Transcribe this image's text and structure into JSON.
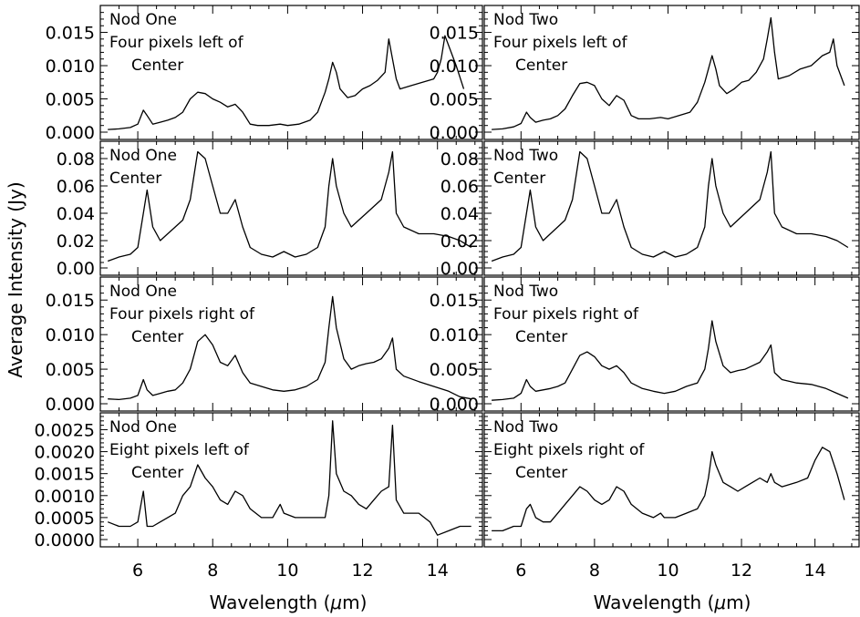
{
  "chart_data": [
    {
      "type": "line",
      "annotation": [
        "Nod One",
        "Four pixels left of",
        "Center"
      ],
      "ylim": [
        0,
        0.0185
      ],
      "yticks": [
        "0.000",
        "0.005",
        "0.010",
        "0.015"
      ],
      "xlim": [
        5,
        15.2
      ],
      "xticks": [
        "6",
        "8",
        "10",
        "12",
        "14"
      ],
      "series": [
        {
          "x": [
            5.2,
            5.5,
            5.8,
            6.0,
            6.15,
            6.25,
            6.4,
            6.6,
            6.8,
            7.0,
            7.2,
            7.4,
            7.6,
            7.8,
            8.0,
            8.2,
            8.4,
            8.6,
            8.8,
            9.0,
            9.2,
            9.5,
            9.8,
            10.0,
            10.3,
            10.6,
            10.8,
            11.0,
            11.1,
            11.2,
            11.3,
            11.4,
            11.6,
            11.8,
            12.0,
            12.2,
            12.4,
            12.6,
            12.7,
            12.8,
            12.9,
            13.0,
            13.3,
            13.6,
            13.9,
            14.0,
            14.1,
            14.2,
            14.3,
            14.5,
            14.7
          ],
          "y": [
            0.0004,
            0.0005,
            0.0007,
            0.0012,
            0.0033,
            0.0025,
            0.0012,
            0.0015,
            0.0018,
            0.0022,
            0.003,
            0.005,
            0.006,
            0.0058,
            0.005,
            0.0045,
            0.0038,
            0.0042,
            0.003,
            0.0012,
            0.001,
            0.001,
            0.0012,
            0.001,
            0.0012,
            0.0018,
            0.003,
            0.006,
            0.008,
            0.0105,
            0.009,
            0.0065,
            0.0052,
            0.0055,
            0.0065,
            0.007,
            0.0078,
            0.009,
            0.014,
            0.011,
            0.008,
            0.0065,
            0.007,
            0.0075,
            0.008,
            0.009,
            0.011,
            0.0145,
            0.013,
            0.01,
            0.0065
          ]
        }
      ]
    },
    {
      "type": "line",
      "annotation": [
        "Nod Two",
        "Four pixels left of",
        "Center"
      ],
      "ylim": [
        0,
        0.0185
      ],
      "yticks": [
        "0.000",
        "0.005",
        "0.010",
        "0.015"
      ],
      "xlim": [
        5,
        15.2
      ],
      "xticks": [
        "6",
        "8",
        "10",
        "12",
        "14"
      ],
      "series": [
        {
          "x": [
            5.2,
            5.5,
            5.8,
            6.0,
            6.15,
            6.25,
            6.4,
            6.6,
            6.8,
            7.0,
            7.2,
            7.4,
            7.6,
            7.8,
            8.0,
            8.2,
            8.4,
            8.6,
            8.8,
            9.0,
            9.2,
            9.5,
            9.8,
            10.0,
            10.3,
            10.6,
            10.8,
            11.0,
            11.1,
            11.2,
            11.3,
            11.4,
            11.6,
            11.8,
            12.0,
            12.2,
            12.4,
            12.6,
            12.7,
            12.8,
            12.9,
            13.0,
            13.3,
            13.6,
            13.9,
            14.0,
            14.2,
            14.4,
            14.5,
            14.6,
            14.8
          ],
          "y": [
            0.0004,
            0.0005,
            0.0008,
            0.0013,
            0.003,
            0.0022,
            0.0015,
            0.0018,
            0.002,
            0.0025,
            0.0035,
            0.0055,
            0.0073,
            0.0075,
            0.007,
            0.005,
            0.004,
            0.0055,
            0.0048,
            0.0025,
            0.002,
            0.002,
            0.0022,
            0.002,
            0.0025,
            0.003,
            0.0045,
            0.0075,
            0.0095,
            0.0115,
            0.0095,
            0.007,
            0.0058,
            0.0065,
            0.0075,
            0.0078,
            0.009,
            0.011,
            0.014,
            0.0172,
            0.012,
            0.008,
            0.0085,
            0.0095,
            0.01,
            0.0105,
            0.0115,
            0.012,
            0.014,
            0.01,
            0.007
          ]
        }
      ]
    },
    {
      "type": "line",
      "annotation": [
        "Nod One",
        "Center"
      ],
      "ylim": [
        0,
        0.09
      ],
      "yticks": [
        "0.00",
        "0.02",
        "0.04",
        "0.06",
        "0.08"
      ],
      "xlim": [
        5,
        15.2
      ],
      "xticks": [
        "6",
        "8",
        "10",
        "12",
        "14"
      ],
      "series": [
        {
          "x": [
            5.2,
            5.5,
            5.8,
            6.0,
            6.15,
            6.25,
            6.4,
            6.6,
            6.8,
            7.0,
            7.2,
            7.4,
            7.6,
            7.8,
            8.0,
            8.2,
            8.4,
            8.6,
            8.8,
            9.0,
            9.3,
            9.6,
            9.9,
            10.2,
            10.5,
            10.8,
            11.0,
            11.1,
            11.2,
            11.3,
            11.5,
            11.7,
            11.9,
            12.1,
            12.3,
            12.5,
            12.7,
            12.8,
            12.9,
            13.1,
            13.5,
            13.9,
            14.3,
            14.6,
            14.9
          ],
          "y": [
            0.005,
            0.008,
            0.01,
            0.015,
            0.04,
            0.057,
            0.03,
            0.02,
            0.025,
            0.03,
            0.035,
            0.05,
            0.085,
            0.08,
            0.06,
            0.04,
            0.04,
            0.05,
            0.03,
            0.015,
            0.01,
            0.008,
            0.012,
            0.008,
            0.01,
            0.015,
            0.03,
            0.06,
            0.08,
            0.06,
            0.04,
            0.03,
            0.035,
            0.04,
            0.045,
            0.05,
            0.07,
            0.085,
            0.04,
            0.03,
            0.025,
            0.025,
            0.023,
            0.02,
            0.015
          ]
        }
      ]
    },
    {
      "type": "line",
      "annotation": [
        "Nod Two",
        "Center"
      ],
      "ylim": [
        0,
        0.09
      ],
      "yticks": [
        "0.00",
        "0.02",
        "0.04",
        "0.06",
        "0.08"
      ],
      "xlim": [
        5,
        15.2
      ],
      "xticks": [
        "6",
        "8",
        "10",
        "12",
        "14"
      ],
      "series": [
        {
          "x": [
            5.2,
            5.5,
            5.8,
            6.0,
            6.15,
            6.25,
            6.4,
            6.6,
            6.8,
            7.0,
            7.2,
            7.4,
            7.6,
            7.8,
            8.0,
            8.2,
            8.4,
            8.6,
            8.8,
            9.0,
            9.3,
            9.6,
            9.9,
            10.2,
            10.5,
            10.8,
            11.0,
            11.1,
            11.2,
            11.3,
            11.5,
            11.7,
            11.9,
            12.1,
            12.3,
            12.5,
            12.7,
            12.8,
            12.9,
            13.1,
            13.5,
            13.9,
            14.3,
            14.6,
            14.9
          ],
          "y": [
            0.005,
            0.008,
            0.01,
            0.015,
            0.04,
            0.057,
            0.03,
            0.02,
            0.025,
            0.03,
            0.035,
            0.05,
            0.085,
            0.08,
            0.06,
            0.04,
            0.04,
            0.05,
            0.03,
            0.015,
            0.01,
            0.008,
            0.012,
            0.008,
            0.01,
            0.015,
            0.03,
            0.06,
            0.08,
            0.06,
            0.04,
            0.03,
            0.035,
            0.04,
            0.045,
            0.05,
            0.07,
            0.085,
            0.04,
            0.03,
            0.025,
            0.025,
            0.023,
            0.02,
            0.015
          ]
        }
      ]
    },
    {
      "type": "line",
      "annotation": [
        "Nod One",
        "Four pixels right of",
        "Center"
      ],
      "ylim": [
        0,
        0.0178
      ],
      "yticks": [
        "0.000",
        "0.005",
        "0.010",
        "0.015"
      ],
      "xlim": [
        5,
        15.2
      ],
      "xticks": [
        "6",
        "8",
        "10",
        "12",
        "14"
      ],
      "series": [
        {
          "x": [
            5.2,
            5.5,
            5.8,
            6.0,
            6.15,
            6.25,
            6.4,
            6.6,
            6.8,
            7.0,
            7.2,
            7.4,
            7.6,
            7.8,
            8.0,
            8.2,
            8.4,
            8.6,
            8.8,
            9.0,
            9.3,
            9.6,
            9.9,
            10.2,
            10.5,
            10.8,
            11.0,
            11.1,
            11.2,
            11.3,
            11.5,
            11.7,
            11.9,
            12.1,
            12.3,
            12.5,
            12.7,
            12.8,
            12.9,
            13.1,
            13.5,
            13.9,
            14.3,
            14.6,
            14.9
          ],
          "y": [
            0.0007,
            0.0006,
            0.0008,
            0.0012,
            0.0035,
            0.002,
            0.0012,
            0.0015,
            0.0018,
            0.002,
            0.003,
            0.005,
            0.009,
            0.01,
            0.0085,
            0.006,
            0.0055,
            0.007,
            0.0045,
            0.003,
            0.0025,
            0.002,
            0.0018,
            0.002,
            0.0025,
            0.0035,
            0.006,
            0.011,
            0.0155,
            0.011,
            0.0065,
            0.005,
            0.0055,
            0.0058,
            0.006,
            0.0065,
            0.008,
            0.0095,
            0.005,
            0.004,
            0.0032,
            0.0025,
            0.0018,
            0.001,
            0.0007
          ]
        }
      ]
    },
    {
      "type": "line",
      "annotation": [
        "Nod Two",
        "Four pixels right of",
        "Center"
      ],
      "ylim": [
        0,
        0.0178
      ],
      "yticks": [
        "0.000",
        "0.005",
        "0.010",
        "0.015"
      ],
      "xlim": [
        5,
        15.2
      ],
      "xticks": [
        "6",
        "8",
        "10",
        "12",
        "14"
      ],
      "series": [
        {
          "x": [
            5.2,
            5.5,
            5.8,
            6.0,
            6.15,
            6.25,
            6.4,
            6.6,
            6.8,
            7.0,
            7.2,
            7.4,
            7.6,
            7.8,
            8.0,
            8.2,
            8.4,
            8.6,
            8.8,
            9.0,
            9.3,
            9.6,
            9.9,
            10.2,
            10.5,
            10.8,
            11.0,
            11.1,
            11.2,
            11.3,
            11.5,
            11.7,
            11.9,
            12.1,
            12.3,
            12.5,
            12.7,
            12.8,
            12.9,
            13.1,
            13.5,
            13.9,
            14.3,
            14.6,
            14.9
          ],
          "y": [
            0.0005,
            0.0006,
            0.0008,
            0.0015,
            0.0035,
            0.0025,
            0.0018,
            0.002,
            0.0022,
            0.0025,
            0.003,
            0.005,
            0.007,
            0.0075,
            0.0068,
            0.0055,
            0.005,
            0.0055,
            0.0045,
            0.003,
            0.0022,
            0.0018,
            0.0015,
            0.0018,
            0.0025,
            0.003,
            0.005,
            0.008,
            0.012,
            0.009,
            0.0055,
            0.0045,
            0.0048,
            0.005,
            0.0055,
            0.006,
            0.0075,
            0.0085,
            0.0045,
            0.0035,
            0.003,
            0.0028,
            0.0022,
            0.0015,
            0.0008
          ]
        }
      ]
    },
    {
      "type": "line",
      "annotation": [
        "Nod One",
        "Eight pixels left of",
        "Center"
      ],
      "ylim": [
        0,
        0.0028
      ],
      "yticks": [
        "0.0000",
        "0.0005",
        "0.0010",
        "0.0015",
        "0.0020",
        "0.0025"
      ],
      "xlim": [
        5,
        15.2
      ],
      "xticks": [
        "6",
        "8",
        "10",
        "12",
        "14"
      ],
      "series": [
        {
          "x": [
            5.2,
            5.5,
            5.8,
            6.0,
            6.15,
            6.25,
            6.4,
            6.6,
            6.8,
            7.0,
            7.2,
            7.4,
            7.6,
            7.8,
            8.0,
            8.2,
            8.4,
            8.6,
            8.8,
            9.0,
            9.3,
            9.6,
            9.8,
            9.9,
            10.2,
            10.5,
            10.8,
            11.0,
            11.1,
            11.2,
            11.3,
            11.5,
            11.7,
            11.9,
            12.1,
            12.3,
            12.5,
            12.7,
            12.8,
            12.9,
            13.1,
            13.5,
            13.8,
            14.0,
            14.3,
            14.6,
            14.9
          ],
          "y": [
            0.0004,
            0.0003,
            0.0003,
            0.0004,
            0.0011,
            0.0003,
            0.0003,
            0.0004,
            0.0005,
            0.0006,
            0.001,
            0.0012,
            0.0017,
            0.0014,
            0.0012,
            0.0009,
            0.0008,
            0.0011,
            0.001,
            0.0007,
            0.0005,
            0.0005,
            0.0008,
            0.0006,
            0.0005,
            0.0005,
            0.0005,
            0.0005,
            0.001,
            0.0027,
            0.0015,
            0.0011,
            0.001,
            0.0008,
            0.0007,
            0.0009,
            0.0011,
            0.0012,
            0.0026,
            0.0009,
            0.0006,
            0.0006,
            0.0004,
            0.0001,
            0.0002,
            0.0003,
            0.0003
          ]
        }
      ]
    },
    {
      "type": "line",
      "annotation": [
        "Nod Two",
        "Eight pixels right of",
        "Center"
      ],
      "ylim": [
        0,
        0.0028
      ],
      "yticks": [
        "",
        "",
        "",
        "",
        "",
        ""
      ],
      "xlim": [
        5,
        15.2
      ],
      "xticks": [
        "6",
        "8",
        "10",
        "12",
        "14"
      ],
      "series": [
        {
          "x": [
            5.2,
            5.5,
            5.8,
            6.0,
            6.15,
            6.25,
            6.4,
            6.6,
            6.8,
            7.0,
            7.2,
            7.4,
            7.6,
            7.8,
            8.0,
            8.2,
            8.4,
            8.6,
            8.8,
            9.0,
            9.3,
            9.6,
            9.8,
            9.9,
            10.2,
            10.5,
            10.8,
            11.0,
            11.1,
            11.2,
            11.3,
            11.5,
            11.7,
            11.9,
            12.1,
            12.3,
            12.5,
            12.7,
            12.8,
            12.9,
            13.1,
            13.5,
            13.8,
            14.0,
            14.2,
            14.4,
            14.6,
            14.8
          ],
          "y": [
            0.0002,
            0.0002,
            0.0003,
            0.0003,
            0.0007,
            0.0008,
            0.0005,
            0.0004,
            0.0004,
            0.0006,
            0.0008,
            0.001,
            0.0012,
            0.0011,
            0.0009,
            0.0008,
            0.0009,
            0.0012,
            0.0011,
            0.0008,
            0.0006,
            0.0005,
            0.0006,
            0.0005,
            0.0005,
            0.0006,
            0.0007,
            0.001,
            0.0014,
            0.002,
            0.0017,
            0.0013,
            0.0012,
            0.0011,
            0.0012,
            0.0013,
            0.0014,
            0.0013,
            0.0015,
            0.0013,
            0.0012,
            0.0013,
            0.0014,
            0.0018,
            0.0021,
            0.002,
            0.0015,
            0.0009
          ]
        }
      ]
    }
  ],
  "axes": {
    "ylabel": "Average Intensity (Jy)",
    "xlabel_prefix": "Wavelength (",
    "xlabel_mu": "μ",
    "xlabel_suffix": "m)"
  }
}
